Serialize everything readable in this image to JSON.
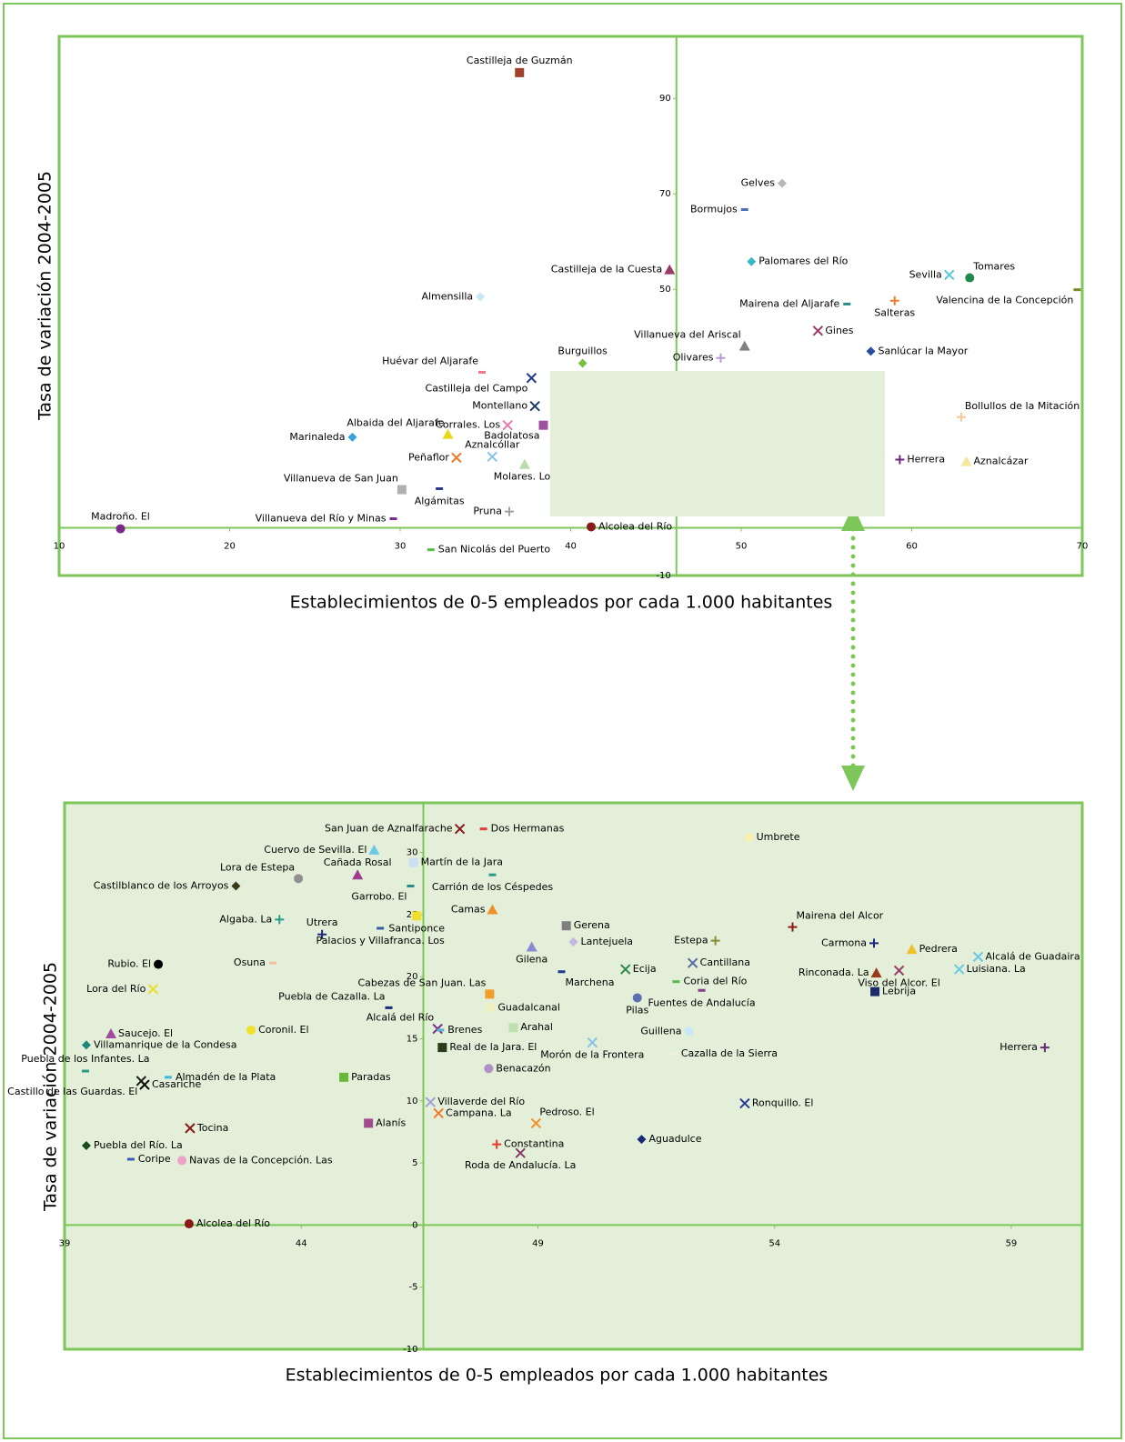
{
  "chart_data": [
    {
      "type": "scatter",
      "xlabel": "Establecimientos de 0-5 empleados por cada 1.000 habitantes",
      "ylabel": "Tasa de variación 2004-2005",
      "xlim": [
        10,
        70
      ],
      "ylim": [
        -10,
        103
      ],
      "xticks": [
        10,
        20,
        30,
        40,
        50,
        60,
        70
      ],
      "yticks": [
        -10,
        50,
        70,
        90
      ],
      "yaxis_position": 46.2,
      "points": [
        {
          "name": "Castilleja de Guzmán",
          "x": 37.0,
          "y": 95.4,
          "color": "#a0402a",
          "marker": "square"
        },
        {
          "name": "Gelves",
          "x": 52.4,
          "y": 72.2,
          "color": "#b8b8b8",
          "marker": "diamond"
        },
        {
          "name": "Bormujos",
          "x": 50.2,
          "y": 66.7,
          "color": "#4a6fb5",
          "marker": "dash"
        },
        {
          "name": "Palomares del Río",
          "x": 50.6,
          "y": 55.8,
          "color": "#3cb7c4",
          "marker": "diamond"
        },
        {
          "name": "Castilleja de la Cuesta",
          "x": 45.8,
          "y": 54.1,
          "color": "#9b3b6c",
          "marker": "triangle"
        },
        {
          "name": "Sevilla",
          "x": 62.2,
          "y": 53.0,
          "color": "#5bc8d8",
          "marker": "x"
        },
        {
          "name": "Tomares",
          "x": 63.4,
          "y": 52.4,
          "color": "#1e8a4c",
          "marker": "circle"
        },
        {
          "name": "Valencina de la Concepción",
          "x": 69.7,
          "y": 49.9,
          "color": "#7a8a2a",
          "marker": "dash"
        },
        {
          "name": "Almensilla",
          "x": 34.7,
          "y": 48.4,
          "color": "#c8e6f5",
          "marker": "diamond"
        },
        {
          "name": "Mairena del Aljarafe",
          "x": 56.2,
          "y": 46.9,
          "color": "#2a8a8a",
          "marker": "dash"
        },
        {
          "name": "Salteras",
          "x": 59.0,
          "y": 47.6,
          "color": "#f07a2a",
          "marker": "plus"
        },
        {
          "name": "Gines",
          "x": 54.5,
          "y": 41.3,
          "color": "#9b3b6c",
          "marker": "x"
        },
        {
          "name": "Villanueva del Ariscal",
          "x": 50.2,
          "y": 38.1,
          "color": "#808080",
          "marker": "triangle"
        },
        {
          "name": "Sanlúcar la Mayor",
          "x": 57.6,
          "y": 37.0,
          "color": "#2a4aa0",
          "marker": "diamond"
        },
        {
          "name": "Olivares",
          "x": 48.8,
          "y": 35.6,
          "color": "#b89ad0",
          "marker": "plus"
        },
        {
          "name": "Burguillos",
          "x": 40.7,
          "y": 34.5,
          "color": "#7ac142",
          "marker": "diamond"
        },
        {
          "name": "Huévar del Aljarafe",
          "x": 34.8,
          "y": 32.6,
          "color": "#f07a8a",
          "marker": "dash"
        },
        {
          "name": "Castilleja del Campo",
          "x": 37.7,
          "y": 31.4,
          "color": "#2a3a8a",
          "marker": "x"
        },
        {
          "name": "Montellano",
          "x": 37.9,
          "y": 25.5,
          "color": "#1e3a6a",
          "marker": "x"
        },
        {
          "name": "Bollullos de la Mitación",
          "x": 62.9,
          "y": 23.2,
          "color": "#f5c89a",
          "marker": "plus"
        },
        {
          "name": "Corrales. Los",
          "x": 36.3,
          "y": 21.5,
          "color": "#e87ab0",
          "marker": "x"
        },
        {
          "name": "Badolatosa",
          "x": 38.4,
          "y": 21.5,
          "color": "#a050a0",
          "marker": "square"
        },
        {
          "name": "Marinaleda",
          "x": 27.2,
          "y": 19.0,
          "color": "#3aa0e0",
          "marker": "diamond"
        },
        {
          "name": "Albaida del Aljarafe",
          "x": 32.8,
          "y": 19.6,
          "color": "#e8d81a",
          "marker": "triangle"
        },
        {
          "name": "Aznalcóllar",
          "x": 35.4,
          "y": 14.9,
          "color": "#8ac0e8",
          "marker": "x"
        },
        {
          "name": "Peñaflor",
          "x": 33.3,
          "y": 14.7,
          "color": "#f07a2a",
          "marker": "x"
        },
        {
          "name": "Molares. Los",
          "x": 37.3,
          "y": 13.3,
          "color": "#b8dcb0",
          "marker": "triangle"
        },
        {
          "name": "Herrera",
          "x": 59.3,
          "y": 14.3,
          "color": "#6a2a7a",
          "marker": "plus"
        },
        {
          "name": "Aznalcázar",
          "x": 63.2,
          "y": 13.9,
          "color": "#f5e89a",
          "marker": "triangle"
        },
        {
          "name": "Villanueva de San Juan",
          "x": 30.1,
          "y": 8.0,
          "color": "#b0b0b0",
          "marker": "square"
        },
        {
          "name": "Algámitas",
          "x": 32.3,
          "y": 8.2,
          "color": "#2a3a8a",
          "marker": "dash"
        },
        {
          "name": "Pruna",
          "x": 36.4,
          "y": 3.4,
          "color": "#a0a0a0",
          "marker": "plus"
        },
        {
          "name": "Villanueva del Río y Minas",
          "x": 29.6,
          "y": 1.9,
          "color": "#7a2a8a",
          "marker": "dash"
        },
        {
          "name": "Madroño. El",
          "x": 13.6,
          "y": -0.2,
          "color": "#7a2a8a",
          "marker": "circle"
        },
        {
          "name": "Alcolea del Río",
          "x": 41.2,
          "y": 0.2,
          "color": "#8a1a1a",
          "marker": "circle"
        },
        {
          "name": "San Nicolás del Puerto",
          "x": 31.8,
          "y": -4.6,
          "color": "#5ab84a",
          "marker": "dash"
        }
      ]
    },
    {
      "type": "scatter",
      "xlabel": "Establecimientos de 0-5 empleados por cada 1.000 habitantes",
      "ylabel": "Tasa de variación 2004-2005",
      "xlim": [
        39,
        60.5
      ],
      "ylim": [
        -10,
        34
      ],
      "xticks": [
        39,
        44,
        49,
        54,
        59
      ],
      "yticks": [
        -10,
        -5,
        0,
        5,
        10,
        15,
        20,
        25,
        30
      ],
      "yaxis_position": 46.58,
      "points": [
        {
          "name": "San Juan de Aznalfarache",
          "x": 47.35,
          "y": 31.9,
          "color": "#8a1a1a",
          "marker": "x"
        },
        {
          "name": "Dos Hermanas",
          "x": 47.85,
          "y": 31.9,
          "color": "#e03a3a",
          "marker": "dash"
        },
        {
          "name": "Umbrete",
          "x": 53.46,
          "y": 31.2,
          "color": "#f8f0b0",
          "marker": "circle"
        },
        {
          "name": "Cuervo de Sevilla. El",
          "x": 45.54,
          "y": 30.2,
          "color": "#6ac8e8",
          "marker": "triangle"
        },
        {
          "name": "Martín de la Jara",
          "x": 46.37,
          "y": 29.2,
          "color": "#c8e0f0",
          "marker": "square"
        },
        {
          "name": "Cañada Rosal",
          "x": 45.19,
          "y": 28.2,
          "color": "#a03a90",
          "marker": "triangle"
        },
        {
          "name": "Lora de Estepa",
          "x": 43.94,
          "y": 27.9,
          "color": "#909090",
          "marker": "circle"
        },
        {
          "name": "Carrión de los Céspedes",
          "x": 48.04,
          "y": 28.2,
          "color": "#2a9a8a",
          "marker": "dash"
        },
        {
          "name": "Castilblanco de los Arroyos",
          "x": 42.62,
          "y": 27.3,
          "color": "#3a3a1a",
          "marker": "diamond"
        },
        {
          "name": "Garrobo. El",
          "x": 46.31,
          "y": 27.3,
          "color": "#2a8a8a",
          "marker": "dash"
        },
        {
          "name": "Camas",
          "x": 48.04,
          "y": 25.4,
          "color": "#f0902a",
          "marker": "triangle"
        },
        {
          "name": "Santiponce",
          "x": 46.44,
          "y": 24.9,
          "color": "#f0e02a",
          "marker": "square"
        },
        {
          "name": "Algaba. La",
          "x": 43.54,
          "y": 24.6,
          "color": "#2a9a8a",
          "marker": "plus"
        },
        {
          "name": "Gerena",
          "x": 49.6,
          "y": 24.1,
          "color": "#808080",
          "marker": "square"
        },
        {
          "name": "Mairena del Alcor",
          "x": 54.38,
          "y": 24.0,
          "color": "#8a1a1a",
          "marker": "plus"
        },
        {
          "name": "Utrera",
          "x": 44.44,
          "y": 23.4,
          "color": "#1a2a7a",
          "marker": "plus"
        },
        {
          "name": "Palacios y Villafranca. Los",
          "x": 45.67,
          "y": 23.9,
          "color": "#3a5aa0",
          "marker": "dash"
        },
        {
          "name": "Estepa",
          "x": 52.75,
          "y": 22.9,
          "color": "#8a8a3a",
          "marker": "plus"
        },
        {
          "name": "Lantejuela",
          "x": 49.75,
          "y": 22.8,
          "color": "#c0b8e0",
          "marker": "diamond"
        },
        {
          "name": "Carmona",
          "x": 56.1,
          "y": 22.7,
          "color": "#1a2a7a",
          "marker": "plus"
        },
        {
          "name": "Gilena",
          "x": 48.87,
          "y": 22.4,
          "color": "#8a8ad0",
          "marker": "triangle"
        },
        {
          "name": "Pedrera",
          "x": 56.9,
          "y": 22.2,
          "color": "#f0c02a",
          "marker": "triangle"
        },
        {
          "name": "Alcalá de Guadaira",
          "x": 58.3,
          "y": 21.6,
          "color": "#6ac8e8",
          "marker": "x"
        },
        {
          "name": "Rubio. El",
          "x": 40.98,
          "y": 21.0,
          "color": "#000000",
          "marker": "circle"
        },
        {
          "name": "Osuna",
          "x": 43.4,
          "y": 21.1,
          "color": "#f5c0a0",
          "marker": "dash"
        },
        {
          "name": "Cantillana",
          "x": 52.27,
          "y": 21.1,
          "color": "#5a6aa0",
          "marker": "x"
        },
        {
          "name": "Marchena",
          "x": 49.5,
          "y": 20.4,
          "color": "#1a3a8a",
          "marker": "dash"
        },
        {
          "name": "Ecija",
          "x": 50.85,
          "y": 20.6,
          "color": "#2a8a4a",
          "marker": "x"
        },
        {
          "name": "Rinconada. La",
          "x": 56.15,
          "y": 20.3,
          "color": "#9a3a1a",
          "marker": "triangle"
        },
        {
          "name": "Viso del Alcor. El",
          "x": 56.63,
          "y": 20.5,
          "color": "#9a3a6a",
          "marker": "x"
        },
        {
          "name": "Luisiana. La",
          "x": 57.9,
          "y": 20.6,
          "color": "#6ac8e8",
          "marker": "x"
        },
        {
          "name": "Cabezas de San Juan. Las",
          "x": 47.98,
          "y": 18.6,
          "color": "#f0a02a",
          "marker": "square"
        },
        {
          "name": "Coria del Río",
          "x": 51.92,
          "y": 19.6,
          "color": "#5ab84a",
          "marker": "dash"
        },
        {
          "name": "Lora del Río",
          "x": 40.87,
          "y": 19.0,
          "color": "#e8e02a",
          "marker": "x"
        },
        {
          "name": "Pilas",
          "x": 51.1,
          "y": 18.3,
          "color": "#5a70b0",
          "marker": "circle"
        },
        {
          "name": "Lebrija",
          "x": 56.12,
          "y": 18.8,
          "color": "#1a2a6a",
          "marker": "square"
        },
        {
          "name": "Fuentes de Andalucía",
          "x": 52.46,
          "y": 18.9,
          "color": "#8a3a8a",
          "marker": "dash"
        },
        {
          "name": "Guadalcanal",
          "x": 48.0,
          "y": 17.5,
          "color": "#f8f0b0",
          "marker": "x"
        },
        {
          "name": "Puebla de Cazalla. La",
          "x": 45.85,
          "y": 17.5,
          "color": "#1a2a7a",
          "marker": "dash"
        },
        {
          "name": "Alcalá del Río",
          "x": 46.88,
          "y": 15.8,
          "color": "#7a2a8a",
          "marker": "x"
        },
        {
          "name": "Brenes",
          "x": 46.94,
          "y": 15.7,
          "color": "#5ab0d0",
          "marker": "dash"
        },
        {
          "name": "Arahal",
          "x": 48.48,
          "y": 15.9,
          "color": "#c0e0b0",
          "marker": "square"
        },
        {
          "name": "Coronil. El",
          "x": 42.94,
          "y": 15.7,
          "color": "#f0e02a",
          "marker": "circle"
        },
        {
          "name": "Saucejo. El",
          "x": 39.98,
          "y": 15.4,
          "color": "#a04aa0",
          "marker": "triangle"
        },
        {
          "name": "Guillena",
          "x": 52.19,
          "y": 15.6,
          "color": "#c8e8f8",
          "marker": "circle"
        },
        {
          "name": "Villamanrique de la Condesa",
          "x": 39.46,
          "y": 14.5,
          "color": "#1a8a7a",
          "marker": "diamond"
        },
        {
          "name": "Morón de la Frontera",
          "x": 50.15,
          "y": 14.7,
          "color": "#8ac0e8",
          "marker": "x"
        },
        {
          "name": "Real de la Jara. El",
          "x": 46.98,
          "y": 14.3,
          "color": "#2a3a1a",
          "marker": "square"
        },
        {
          "name": "Herrera",
          "x": 59.71,
          "y": 14.3,
          "color": "#6a2a7a",
          "marker": "plus"
        },
        {
          "name": "Cazalla de la Sierra",
          "x": 51.87,
          "y": 13.8,
          "color": "#f0f0e0",
          "marker": "dash"
        },
        {
          "name": "Puebla de los Infantes. La",
          "x": 39.44,
          "y": 12.4,
          "color": "#2a9a8a",
          "marker": "dash"
        },
        {
          "name": "Benacazón",
          "x": 47.96,
          "y": 12.6,
          "color": "#b090c8",
          "marker": "circle"
        },
        {
          "name": "Almadén de la Plata",
          "x": 41.19,
          "y": 11.9,
          "color": "#3ab8e0",
          "marker": "dash"
        },
        {
          "name": "Paradas",
          "x": 44.9,
          "y": 11.9,
          "color": "#6ab83a",
          "marker": "square"
        },
        {
          "name": "Casariche",
          "x": 40.69,
          "y": 11.3,
          "color": "#000000",
          "marker": "x"
        },
        {
          "name": "Castillo de las Guardas. El",
          "x": 40.62,
          "y": 11.6,
          "color": "#1a1a1a",
          "marker": "x"
        },
        {
          "name": "Villaverde del Río",
          "x": 46.73,
          "y": 9.9,
          "color": "#a0a0d8",
          "marker": "x"
        },
        {
          "name": "Ronquillo. El",
          "x": 53.37,
          "y": 9.8,
          "color": "#2a3a9a",
          "marker": "x"
        },
        {
          "name": "Campana. La",
          "x": 46.9,
          "y": 9.0,
          "color": "#f07a2a",
          "marker": "x"
        },
        {
          "name": "Pedroso. El",
          "x": 48.96,
          "y": 8.2,
          "color": "#f0902a",
          "marker": "x"
        },
        {
          "name": "Alanís",
          "x": 45.42,
          "y": 8.2,
          "color": "#a04a90",
          "marker": "square"
        },
        {
          "name": "Tocina",
          "x": 41.65,
          "y": 7.8,
          "color": "#8a1a1a",
          "marker": "x"
        },
        {
          "name": "Aguadulce",
          "x": 51.19,
          "y": 6.9,
          "color": "#1a2a7a",
          "marker": "diamond"
        },
        {
          "name": "Constantina",
          "x": 48.13,
          "y": 6.5,
          "color": "#e83a2a",
          "marker": "plus"
        },
        {
          "name": "Puebla del Río. La",
          "x": 39.46,
          "y": 6.4,
          "color": "#1a4a1a",
          "marker": "diamond"
        },
        {
          "name": "Roda de Andalucía. La",
          "x": 48.63,
          "y": 5.8,
          "color": "#8a3a6a",
          "marker": "x"
        },
        {
          "name": "Coripe",
          "x": 40.4,
          "y": 5.3,
          "color": "#3a5ab0",
          "marker": "dash"
        },
        {
          "name": "Navas de la Concepción. Las",
          "x": 41.48,
          "y": 5.2,
          "color": "#f0a0c8",
          "marker": "circle"
        },
        {
          "name": "Alcolea del Río",
          "x": 41.63,
          "y": 0.1,
          "color": "#8a1a1a",
          "marker": "circle"
        }
      ]
    }
  ]
}
